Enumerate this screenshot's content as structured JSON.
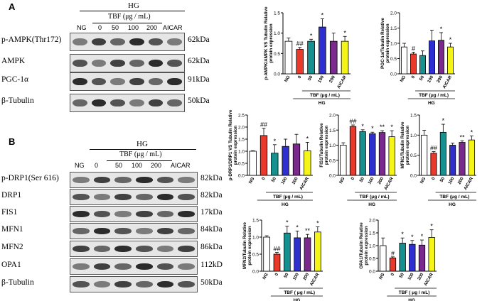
{
  "panelA": {
    "letter": "A",
    "hg": "HG",
    "tbf": "TBF (μg / mL)",
    "lanes": [
      "NG",
      "0",
      "50",
      "100",
      "200",
      "AICAR"
    ],
    "rows": [
      {
        "label": "p-AMPK(Thr172)",
        "kda": "62kDa"
      },
      {
        "label": "AMPK",
        "kda": "62kDa"
      },
      {
        "label": "PGC-1α",
        "kda": "91kDa"
      },
      {
        "label": "β-Tubulin",
        "kda": "50kDa"
      }
    ]
  },
  "panelB": {
    "letter": "B",
    "hg": "HG",
    "tbf": "TBF (μg / mL)",
    "lanes": [
      "NG",
      "0",
      "50",
      "100",
      "200",
      "AICAR"
    ],
    "rows": [
      {
        "label": "p-DRP1(Ser 616)",
        "kda": "82kDa"
      },
      {
        "label": "DRP1",
        "kda": "82kDa"
      },
      {
        "label": "FIS1",
        "kda": "17kDa"
      },
      {
        "label": "MFN1",
        "kda": "84kDa"
      },
      {
        "label": "MFN2",
        "kda": "86kDa"
      },
      {
        "label": "OPA1",
        "kda": "112kD"
      },
      {
        "label": "β-Tubulin",
        "kda": "50kDa"
      }
    ]
  },
  "colors": {
    "NG": "#ffffff",
    "0": "#e8392b",
    "50": "#17918f",
    "100": "#2f2fd0",
    "200": "#7a2a8c",
    "AICAR": "#f4f418"
  },
  "chart_data": [
    {
      "type": "bar",
      "ylabel": "p-AMPK/AMPK VS Tubulin Relative\nprotein expression",
      "categories": [
        "NG",
        "0",
        "50",
        "100",
        "200",
        "AICAR"
      ],
      "values": [
        0.8,
        0.6,
        0.8,
        1.15,
        0.8,
        0.8
      ],
      "errors": [
        0.08,
        0.05,
        0.05,
        0.2,
        0.2,
        0.12
      ],
      "sig": [
        "",
        "##",
        "*",
        "*",
        "",
        "*"
      ],
      "ylim": [
        0,
        1.5
      ],
      "yticks": [
        "0.0",
        "0.5",
        "1.0",
        "1.5"
      ],
      "xlabel": "TBF (μg / mL)",
      "group": "HG"
    },
    {
      "type": "bar",
      "ylabel": "PGC-1α/Tubulin Relative\nprotein expression",
      "categories": [
        "NG",
        "0",
        "50",
        "100",
        "200",
        "AICAR"
      ],
      "values": [
        0.88,
        0.65,
        0.6,
        1.08,
        1.1,
        0.88
      ],
      "errors": [
        0.12,
        0.06,
        0.15,
        0.35,
        0.25,
        0.12
      ],
      "sig": [
        "",
        "#",
        "",
        "",
        "*",
        "*"
      ],
      "ylim": [
        0,
        2.0
      ],
      "yticks": [
        "0.0",
        "0.5",
        "1.0",
        "1.5",
        "2.0"
      ],
      "xlabel": "TBF (μg / mL)",
      "group": "HG"
    },
    {
      "type": "bar",
      "ylabel": "p-DRP1/DRP1 VS Tubulin Relative\nprotein expression",
      "categories": [
        "NG",
        "0",
        "50",
        "100",
        "200",
        "AICAR"
      ],
      "values": [
        1.0,
        1.65,
        0.92,
        1.2,
        1.3,
        1.02
      ],
      "errors": [
        0.02,
        0.3,
        0.35,
        0.3,
        0.4,
        0.35
      ],
      "sig": [
        "",
        "##",
        "*",
        "",
        "",
        "*"
      ],
      "ylim": [
        0,
        2.5
      ],
      "yticks": [
        "0.0",
        "0.5",
        "1.0",
        "1.5",
        "2.0",
        "2.5"
      ],
      "xlabel": "TBF (μg / mL)",
      "group": "HG"
    },
    {
      "type": "bar",
      "ylabel": "FIS1/Tubulin Relative\nprotein expression",
      "categories": [
        "NG",
        "0",
        "50",
        "100",
        "200",
        "AICAR"
      ],
      "values": [
        1.0,
        1.62,
        1.45,
        1.38,
        1.42,
        1.28
      ],
      "errors": [
        0.08,
        0.05,
        0.06,
        0.05,
        0.06,
        0.2
      ],
      "sig": [
        "",
        "##",
        "*",
        "*",
        "**",
        "*"
      ],
      "ylim": [
        0,
        2.0
      ],
      "yticks": [
        "0.0",
        "0.5",
        "1.0",
        "1.5",
        "2.0"
      ],
      "xlabel": "TBF (μg / mL)",
      "group": "HG"
    },
    {
      "type": "bar",
      "ylabel": "MFN1/Tubulin Relative\nprotein expression",
      "categories": [
        "NG",
        "0",
        "50",
        "100",
        "200",
        "AICAR"
      ],
      "values": [
        1.0,
        0.55,
        1.07,
        0.75,
        0.82,
        0.88
      ],
      "errors": [
        0.12,
        0.04,
        0.2,
        0.05,
        0.04,
        0.1
      ],
      "sig": [
        "",
        "##",
        "*",
        "",
        "**",
        "*"
      ],
      "ylim": [
        0,
        1.5
      ],
      "yticks": [
        "0.0",
        "0.5",
        "1.0",
        "1.5"
      ],
      "xlabel": "TBF (μg / mL)",
      "group": "HG"
    },
    {
      "type": "bar",
      "ylabel": "MFN2/Tubulin Relative\nprotein expression",
      "categories": [
        "NG",
        "0",
        "50",
        "100",
        "200",
        "AICAR"
      ],
      "values": [
        1.0,
        0.5,
        1.12,
        0.98,
        0.98,
        1.15
      ],
      "errors": [
        0.04,
        0.05,
        0.2,
        0.2,
        0.1,
        0.15
      ],
      "sig": [
        "",
        "##",
        "*",
        "*",
        "**",
        "*"
      ],
      "ylim": [
        0,
        1.5
      ],
      "yticks": [
        "0.0",
        "0.5",
        "1.0",
        "1.5"
      ],
      "xlabel": "TBF ( μg / mL)",
      "group": "HG"
    },
    {
      "type": "bar",
      "ylabel": "OPA1/Tubulin Relative\nprotein expression",
      "categories": [
        "NG",
        "0",
        "50",
        "100",
        "200",
        "AICAR"
      ],
      "values": [
        1.0,
        0.52,
        1.1,
        1.05,
        1.02,
        1.32
      ],
      "errors": [
        0.3,
        0.04,
        0.2,
        0.15,
        0.2,
        0.3
      ],
      "sig": [
        "",
        "#",
        "*",
        "*",
        "*",
        "*"
      ],
      "ylim": [
        0,
        2.0
      ],
      "yticks": [
        "0.0",
        "0.5",
        "1.0",
        "1.5",
        "2.0"
      ],
      "xlabel": "TBF ( μg / mL)",
      "group": "HG"
    }
  ]
}
